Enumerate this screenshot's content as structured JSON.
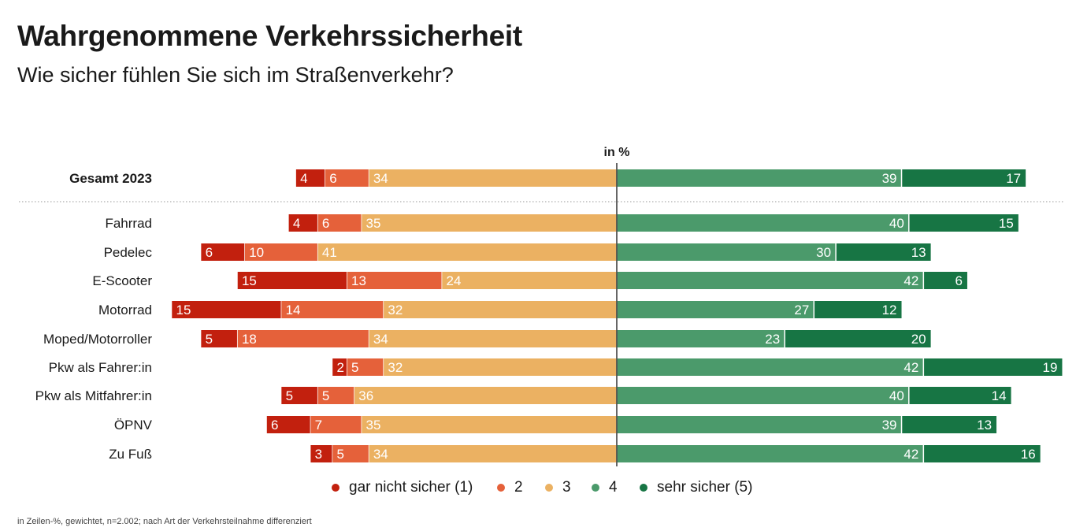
{
  "header": {
    "title": "Wahrgenommene Verkehrssicherheit",
    "subtitle": "Wie sicher fühlen Sie sich im Straßenverkehr?"
  },
  "footnote": "in Zeilen-%, gewichtet, n=2.002; nach Art der Verkehrsteilnahme differenziert",
  "chart_data": {
    "type": "bar",
    "orientation": "horizontal",
    "layout": "diverging-stacked",
    "unit_label": "in %",
    "categories": [
      "Gesamt 2023",
      "Fahrrad",
      "Pedelec",
      "E-Scooter",
      "Motorrad",
      "Moped/Motorroller",
      "Pkw als Fahrer:in",
      "Pkw als Mitfahrer:in",
      "ÖPNV",
      "Zu Fuß"
    ],
    "series": [
      {
        "name": "gar nicht sicher (1)",
        "color": "#c2200e",
        "side": "left",
        "values": [
          4,
          4,
          6,
          15,
          15,
          5,
          2,
          5,
          6,
          3
        ]
      },
      {
        "name": "2",
        "color": "#e5613a",
        "side": "left",
        "values": [
          6,
          6,
          10,
          13,
          14,
          18,
          5,
          5,
          7,
          5
        ]
      },
      {
        "name": "3",
        "color": "#ebb162",
        "side": "left",
        "values": [
          34,
          35,
          41,
          24,
          32,
          34,
          32,
          36,
          35,
          34
        ]
      },
      {
        "name": "4",
        "color": "#4b9a6b",
        "side": "right",
        "values": [
          39,
          40,
          30,
          42,
          27,
          23,
          42,
          40,
          39,
          42
        ]
      },
      {
        "name": "sehr sicher (5)",
        "color": "#177544",
        "side": "right",
        "values": [
          17,
          15,
          13,
          6,
          12,
          20,
          19,
          14,
          13,
          16
        ]
      }
    ],
    "highlight_category": "Gesamt 2023",
    "separator_after_category": "Gesamt 2023",
    "legend_position": "bottom-center",
    "grid": false
  }
}
